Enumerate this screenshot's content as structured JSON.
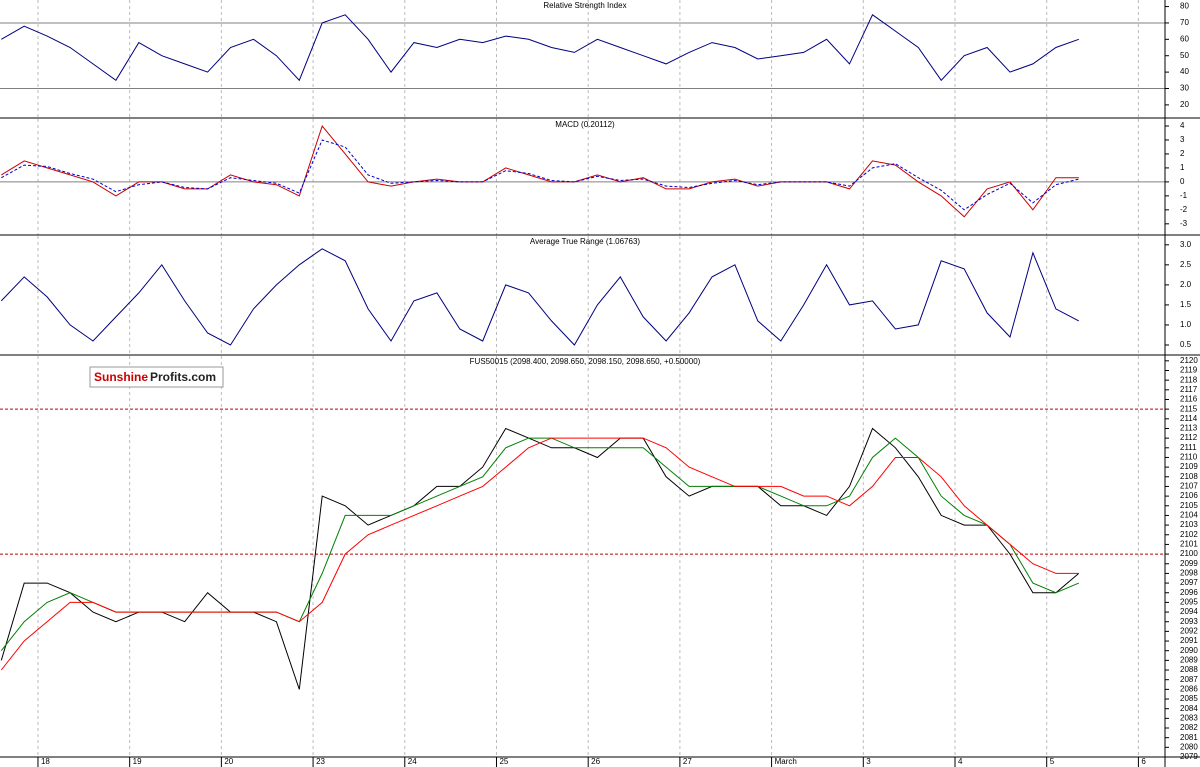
{
  "logo": {
    "part1": "Sunshine",
    "part2": "Profits.com"
  },
  "chart_data": [
    {
      "type": "line",
      "title": "Relative Strength Index",
      "x": [
        -0.4,
        -0.15,
        0.1,
        0.35,
        0.6,
        0.85,
        1.1,
        1.35,
        1.6,
        1.85,
        2.1,
        2.35,
        2.6,
        2.85,
        3.1,
        3.35,
        3.6,
        3.85,
        4.1,
        4.35,
        4.6,
        4.85,
        5.1,
        5.35,
        5.6,
        5.85,
        6.1,
        6.35,
        6.6,
        6.85,
        7.1,
        7.35,
        7.6,
        7.85,
        8.1,
        8.35,
        8.6,
        8.85,
        9.1,
        9.35,
        9.6,
        9.85,
        10.1,
        10.35,
        10.6,
        10.85,
        11.1,
        11.35
      ],
      "series": [
        {
          "color": "#000080",
          "values": [
            60,
            68,
            62,
            55,
            45,
            35,
            58,
            50,
            45,
            40,
            55,
            60,
            50,
            35,
            70,
            75,
            60,
            40,
            58,
            55,
            60,
            58,
            62,
            60,
            55,
            52,
            60,
            55,
            50,
            45,
            52,
            58,
            55,
            48,
            50,
            52,
            60,
            45,
            75,
            65,
            55,
            35,
            50,
            55,
            40,
            45,
            55,
            60
          ]
        }
      ],
      "ylim": [
        12,
        84
      ],
      "yticks": [
        20,
        30,
        40,
        50,
        60,
        70,
        80
      ],
      "hlines": [
        70,
        30
      ],
      "hline_color": "#808080",
      "hline_style": "solid"
    },
    {
      "type": "line",
      "title": "MACD (0.20112)",
      "x": [
        -0.4,
        -0.15,
        0.1,
        0.35,
        0.6,
        0.85,
        1.1,
        1.35,
        1.6,
        1.85,
        2.1,
        2.35,
        2.6,
        2.85,
        3.1,
        3.35,
        3.6,
        3.85,
        4.1,
        4.35,
        4.6,
        4.85,
        5.1,
        5.35,
        5.6,
        5.85,
        6.1,
        6.35,
        6.6,
        6.85,
        7.1,
        7.35,
        7.6,
        7.85,
        8.1,
        8.35,
        8.6,
        8.85,
        9.1,
        9.35,
        9.6,
        9.85,
        10.1,
        10.35,
        10.6,
        10.85,
        11.1,
        11.35
      ],
      "series": [
        {
          "color": "#cc0000",
          "style": "solid",
          "values": [
            0.5,
            1.5,
            1,
            0.5,
            0,
            -1,
            0,
            0,
            -0.5,
            -0.5,
            0.5,
            0,
            -0.2,
            -1,
            4,
            2,
            0,
            -0.3,
            0,
            0.2,
            0,
            0,
            1,
            0.5,
            0,
            0,
            0.5,
            0,
            0.3,
            -0.5,
            -0.5,
            0,
            0.2,
            -0.3,
            0,
            0,
            0,
            -0.5,
            1.5,
            1.2,
            0,
            -1,
            -2.5,
            -0.5,
            0,
            -2,
            0.3,
            0.3
          ]
        },
        {
          "color": "#0000cc",
          "style": "dashed",
          "values": [
            0.3,
            1.2,
            1.1,
            0.6,
            0.2,
            -0.7,
            -0.2,
            0,
            -0.4,
            -0.5,
            0.3,
            0.1,
            -0.1,
            -0.8,
            3,
            2.5,
            0.5,
            -0.1,
            0,
            0.1,
            0,
            0,
            0.8,
            0.6,
            0.1,
            0,
            0.4,
            0.1,
            0.2,
            -0.3,
            -0.4,
            -0.1,
            0.1,
            -0.2,
            0,
            0,
            0,
            -0.3,
            1,
            1.3,
            0.3,
            -0.6,
            -2,
            -0.9,
            -0.1,
            -1.5,
            -0.2,
            0.2
          ]
        }
      ],
      "ylim": [
        -3.8,
        4.5
      ],
      "yticks": [
        -3,
        -2,
        -1,
        0,
        1,
        2,
        3,
        4
      ],
      "hlines": [
        0
      ],
      "hline_color": "#808080",
      "hline_style": "solid"
    },
    {
      "type": "line",
      "title": "Average True Range (1.06763)",
      "x": [
        -0.4,
        -0.15,
        0.1,
        0.35,
        0.6,
        0.85,
        1.1,
        1.35,
        1.6,
        1.85,
        2.1,
        2.35,
        2.6,
        2.85,
        3.1,
        3.35,
        3.6,
        3.85,
        4.1,
        4.35,
        4.6,
        4.85,
        5.1,
        5.35,
        5.6,
        5.85,
        6.1,
        6.35,
        6.6,
        6.85,
        7.1,
        7.35,
        7.6,
        7.85,
        8.1,
        8.35,
        8.6,
        8.85,
        9.1,
        9.35,
        9.6,
        9.85,
        10.1,
        10.35,
        10.6,
        10.85,
        11.1,
        11.35
      ],
      "series": [
        {
          "color": "#000080",
          "values": [
            1.6,
            2.2,
            1.7,
            1.0,
            0.6,
            1.2,
            1.8,
            2.5,
            1.6,
            0.8,
            0.5,
            1.4,
            2.0,
            2.5,
            2.9,
            2.6,
            1.4,
            0.6,
            1.6,
            1.8,
            0.9,
            0.6,
            2.0,
            1.8,
            1.1,
            0.5,
            1.5,
            2.2,
            1.2,
            0.6,
            1.3,
            2.2,
            2.5,
            1.1,
            0.6,
            1.5,
            2.5,
            1.5,
            1.6,
            0.9,
            1.0,
            2.6,
            2.4,
            1.3,
            0.7,
            2.8,
            1.4,
            1.1
          ]
        }
      ],
      "ylim": [
        0.25,
        3.22
      ],
      "yticks": [
        0.5,
        {
          "value": 1,
          "label": "1.0"
        },
        1.5,
        {
          "value": 2,
          "label": "2.0"
        },
        2.5,
        {
          "value": 3,
          "label": "3.0"
        }
      ]
    },
    {
      "type": "line",
      "title": "FUS50015 (2098.400, 2098.650, 2098.150, 2098.650, +0.50000)",
      "x": [
        -0.4,
        -0.15,
        0.1,
        0.35,
        0.6,
        0.85,
        1.1,
        1.35,
        1.6,
        1.85,
        2.1,
        2.35,
        2.6,
        2.85,
        3.1,
        3.35,
        3.6,
        3.85,
        4.1,
        4.35,
        4.6,
        4.85,
        5.1,
        5.35,
        5.6,
        5.85,
        6.1,
        6.35,
        6.6,
        6.85,
        7.1,
        7.35,
        7.6,
        7.85,
        8.1,
        8.35,
        8.6,
        8.85,
        9.1,
        9.35,
        9.6,
        9.85,
        10.1,
        10.35,
        10.6,
        10.85,
        11.1,
        11.35
      ],
      "series": [
        {
          "color": "#000000",
          "values": [
            2089,
            2097,
            2097,
            2096,
            2094,
            2093,
            2094,
            2094,
            2093,
            2096,
            2094,
            2094,
            2093,
            2086,
            2106,
            2105,
            2103,
            2104,
            2105,
            2107,
            2107,
            2109,
            2113,
            2112,
            2111,
            2111,
            2110,
            2112,
            2112,
            2108,
            2106,
            2107,
            2107,
            2107,
            2105,
            2105,
            2104,
            2107,
            2113,
            2111,
            2108,
            2104,
            2103,
            2103,
            2100,
            2096,
            2096,
            2098
          ]
        },
        {
          "color": "#008000",
          "values": [
            2090,
            2093,
            2095,
            2096,
            2095,
            2094,
            2094,
            2094,
            2094,
            2094,
            2094,
            2094,
            2094,
            2093,
            2098,
            2104,
            2104,
            2104,
            2105,
            2106,
            2107,
            2108,
            2111,
            2112,
            2112,
            2111,
            2111,
            2111,
            2111,
            2109,
            2107,
            2107,
            2107,
            2107,
            2106,
            2105,
            2105,
            2106,
            2110,
            2112,
            2110,
            2106,
            2104,
            2103,
            2101,
            2097,
            2096,
            2097
          ]
        },
        {
          "color": "#ff0000",
          "values": [
            2088,
            2091,
            2093,
            2095,
            2095,
            2094,
            2094,
            2094,
            2094,
            2094,
            2094,
            2094,
            2094,
            2093,
            2095,
            2100,
            2102,
            2103,
            2104,
            2105,
            2106,
            2107,
            2109,
            2111,
            2112,
            2112,
            2112,
            2112,
            2112,
            2111,
            2109,
            2108,
            2107,
            2107,
            2107,
            2106,
            2106,
            2105,
            2107,
            2110,
            2110,
            2108,
            2105,
            2103,
            2101,
            2099,
            2098,
            2098
          ]
        }
      ],
      "ylim": [
        2079,
        2120.5
      ],
      "yticks": [
        2079,
        2080,
        2081,
        2082,
        2083,
        2084,
        2085,
        2086,
        2087,
        2088,
        2089,
        2090,
        2091,
        2092,
        2093,
        2094,
        2095,
        2096,
        2097,
        2098,
        2099,
        2100,
        2101,
        2102,
        2103,
        2104,
        2105,
        2106,
        2107,
        2108,
        2109,
        2110,
        2111,
        2112,
        2113,
        2114,
        2115,
        2116,
        2117,
        2118,
        2119,
        2120
      ],
      "hlines": [
        2115,
        2100
      ],
      "hline_color": "#c00000",
      "hline_style": "dashed",
      "xlim": [
        -0.414,
        12.29
      ],
      "xticks": [
        {
          "value": 0,
          "label": "18"
        },
        {
          "value": 1,
          "label": "19"
        },
        {
          "value": 2,
          "label": "20"
        },
        {
          "value": 3,
          "label": "23"
        },
        {
          "value": 4,
          "label": "24"
        },
        {
          "value": 5,
          "label": "25"
        },
        {
          "value": 6,
          "label": "26"
        },
        {
          "value": 7,
          "label": "27"
        },
        {
          "value": 8,
          "label": "March"
        },
        {
          "value": 9,
          "label": "3"
        },
        {
          "value": 10,
          "label": "4"
        },
        {
          "value": 11,
          "label": "5"
        },
        {
          "value": 12,
          "label": "6"
        }
      ]
    }
  ]
}
